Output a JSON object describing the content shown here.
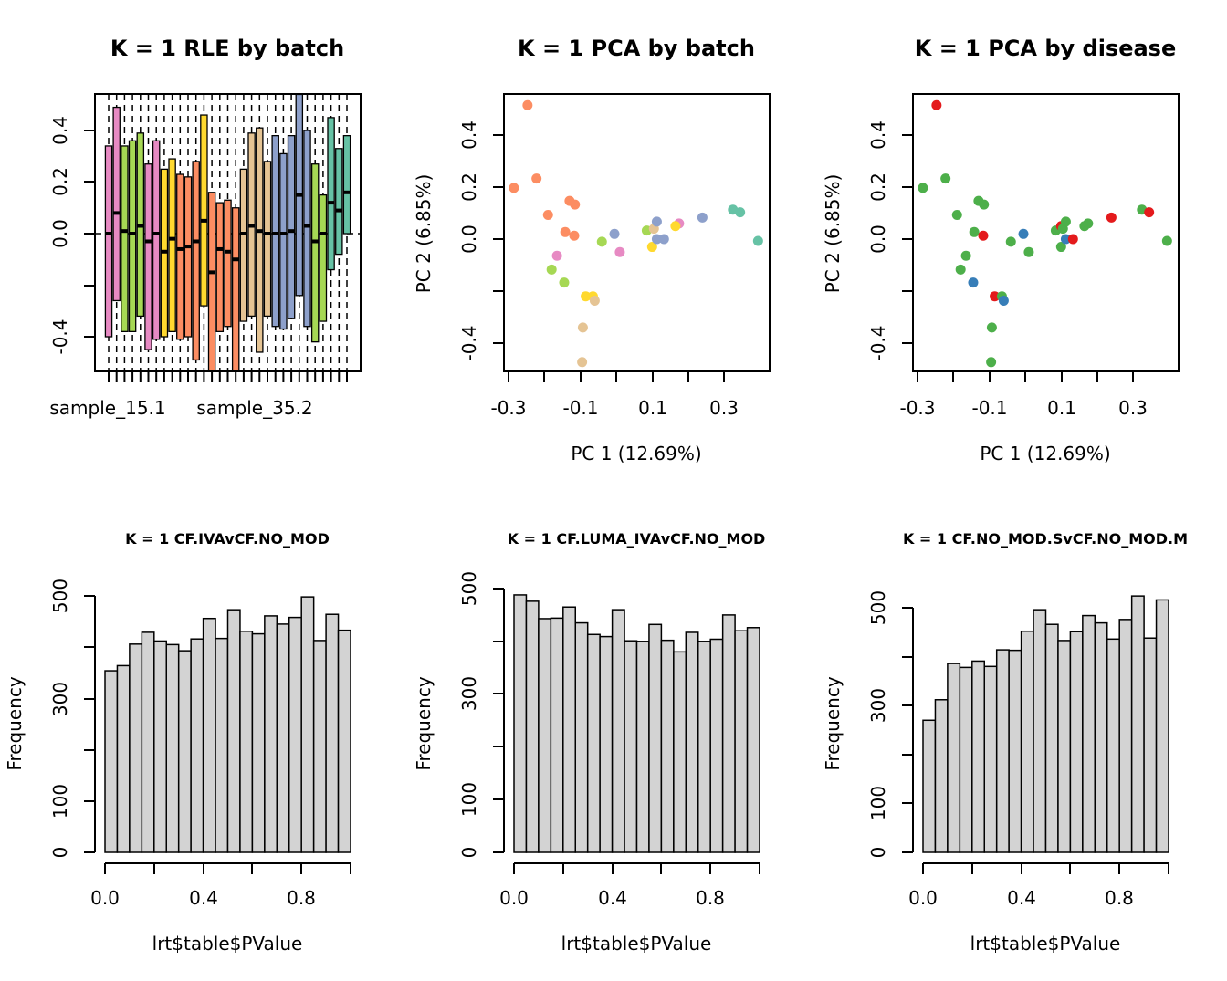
{
  "panels": {
    "rle": {
      "title": "K = 1 RLE by batch",
      "x_tick_labels": [
        "sample_15.1",
        "sample_35.2"
      ],
      "y_ticks": [
        "-0.4",
        "0.0",
        "0.2",
        "0.4"
      ]
    },
    "pca_batch": {
      "title": "K = 1 PCA by batch",
      "xlabel": "PC 1 (12.69%)",
      "ylabel": "PC 2 (6.85%)",
      "x_ticks": [
        "-0.3",
        "-0.1",
        "0.1",
        "0.3"
      ],
      "y_ticks": [
        "-0.4",
        "0.0",
        "0.2",
        "0.4"
      ]
    },
    "pca_disease": {
      "title": "K = 1 PCA by disease",
      "xlabel": "PC 1 (12.69%)",
      "ylabel": "PC 2 (6.85%)",
      "x_ticks": [
        "-0.3",
        "-0.1",
        "0.1",
        "0.3"
      ],
      "y_ticks": [
        "-0.4",
        "0.0",
        "0.2",
        "0.4"
      ]
    },
    "hist1": {
      "title": "K = 1 CF.IVAvCF.NO_MOD",
      "xlabel": "lrt$table$PValue",
      "ylabel": "Frequency",
      "x_ticks": [
        "0.0",
        "0.4",
        "0.8"
      ],
      "y_ticks": [
        "0",
        "100",
        "300",
        "500"
      ]
    },
    "hist2": {
      "title": "K = 1 CF.LUMA_IVAvCF.NO_MOD",
      "xlabel": "lrt$table$PValue",
      "ylabel": "Frequency",
      "x_ticks": [
        "0.0",
        "0.4",
        "0.8"
      ],
      "y_ticks": [
        "0",
        "100",
        "300",
        "500"
      ]
    },
    "hist3": {
      "title": "K = 1 CF.NO_MOD.SvCF.NO_MOD.M",
      "xlabel": "lrt$table$PValue",
      "ylabel": "Frequency",
      "x_ticks": [
        "0.0",
        "0.4",
        "0.8"
      ],
      "y_ticks": [
        "0",
        "100",
        "300",
        "500"
      ]
    }
  },
  "chart_data": [
    {
      "type": "box",
      "title": "K = 1 RLE by batch",
      "ylim": [
        -0.54,
        0.54
      ],
      "reference_line": 0,
      "boxes": [
        {
          "color": "#E78AC3",
          "q1": -0.4,
          "median": 0.0,
          "q3": 0.34
        },
        {
          "color": "#E78AC3",
          "q1": -0.26,
          "median": 0.08,
          "q3": 0.49
        },
        {
          "color": "#A6D854",
          "q1": -0.38,
          "median": 0.01,
          "q3": 0.34
        },
        {
          "color": "#A6D854",
          "q1": -0.38,
          "median": 0.0,
          "q3": 0.36
        },
        {
          "color": "#A6D854",
          "q1": -0.32,
          "median": 0.03,
          "q3": 0.39
        },
        {
          "color": "#E78AC3",
          "q1": -0.45,
          "median": -0.03,
          "q3": 0.27
        },
        {
          "color": "#E78AC3",
          "q1": -0.41,
          "median": 0.0,
          "q3": 0.36
        },
        {
          "color": "#FFD92F",
          "q1": -0.4,
          "median": -0.07,
          "q3": 0.25
        },
        {
          "color": "#FFD92F",
          "q1": -0.38,
          "median": -0.02,
          "q3": 0.29
        },
        {
          "color": "#FC8D62",
          "q1": -0.41,
          "median": -0.06,
          "q3": 0.23
        },
        {
          "color": "#FC8D62",
          "q1": -0.4,
          "median": -0.05,
          "q3": 0.22
        },
        {
          "color": "#FC8D62",
          "q1": -0.49,
          "median": -0.03,
          "q3": 0.28
        },
        {
          "color": "#FFD92F",
          "q1": -0.28,
          "median": 0.05,
          "q3": 0.46
        },
        {
          "color": "#FC8D62",
          "q1": -0.54,
          "median": -0.15,
          "q3": 0.16
        },
        {
          "color": "#FC8D62",
          "q1": -0.38,
          "median": -0.06,
          "q3": 0.12
        },
        {
          "color": "#FC8D62",
          "q1": -0.36,
          "median": -0.07,
          "q3": 0.13
        },
        {
          "color": "#FC8D62",
          "q1": -0.54,
          "median": -0.1,
          "q3": 0.1
        },
        {
          "color": "#E5C494",
          "q1": -0.34,
          "median": 0.0,
          "q3": 0.25
        },
        {
          "color": "#E5C494",
          "q1": -0.32,
          "median": 0.03,
          "q3": 0.39
        },
        {
          "color": "#E5C494",
          "q1": -0.46,
          "median": 0.01,
          "q3": 0.41
        },
        {
          "color": "#E5C494",
          "q1": -0.32,
          "median": 0.0,
          "q3": 0.28
        },
        {
          "color": "#8DA0CB",
          "q1": -0.36,
          "median": 0.0,
          "q3": 0.38
        },
        {
          "color": "#8DA0CB",
          "q1": -0.37,
          "median": 0.0,
          "q3": 0.31
        },
        {
          "color": "#8DA0CB",
          "q1": -0.33,
          "median": 0.01,
          "q3": 0.38
        },
        {
          "color": "#8DA0CB",
          "q1": -0.24,
          "median": 0.15,
          "q3": 0.54
        },
        {
          "color": "#8DA0CB",
          "q1": -0.36,
          "median": 0.03,
          "q3": 0.4
        },
        {
          "color": "#A6D854",
          "q1": -0.42,
          "median": -0.03,
          "q3": 0.27
        },
        {
          "color": "#A6D854",
          "q1": -0.34,
          "median": 0.0,
          "q3": 0.15
        },
        {
          "color": "#66C2A5",
          "q1": -0.14,
          "median": 0.12,
          "q3": 0.45
        },
        {
          "color": "#66C2A5",
          "q1": -0.08,
          "median": 0.09,
          "q3": 0.33
        },
        {
          "color": "#66C2A5",
          "q1": 0.0,
          "median": 0.16,
          "q3": 0.38
        }
      ]
    },
    {
      "type": "scatter",
      "title": "K = 1 PCA by batch",
      "xlabel": "PC 1 (12.69%)",
      "ylabel": "PC 2 (6.85%)",
      "xlim": [
        -0.32,
        0.4
      ],
      "ylim": [
        -0.51,
        0.56
      ],
      "points": [
        {
          "x": -0.247,
          "y": 0.515,
          "color": "#FC8D62"
        },
        {
          "x": -0.222,
          "y": 0.233,
          "color": "#FC8D62"
        },
        {
          "x": -0.285,
          "y": 0.197,
          "color": "#FC8D62"
        },
        {
          "x": -0.13,
          "y": 0.147,
          "color": "#FC8D62"
        },
        {
          "x": -0.115,
          "y": 0.133,
          "color": "#FC8D62"
        },
        {
          "x": -0.19,
          "y": 0.093,
          "color": "#FC8D62"
        },
        {
          "x": -0.142,
          "y": 0.027,
          "color": "#FC8D62"
        },
        {
          "x": -0.117,
          "y": 0.013,
          "color": "#FC8D62"
        },
        {
          "x": -0.165,
          "y": -0.064,
          "color": "#E78AC3"
        },
        {
          "x": 0.01,
          "y": -0.05,
          "color": "#E78AC3"
        },
        {
          "x": 0.175,
          "y": 0.06,
          "color": "#E78AC3"
        },
        {
          "x": -0.18,
          "y": -0.117,
          "color": "#A6D854"
        },
        {
          "x": -0.145,
          "y": -0.167,
          "color": "#A6D854"
        },
        {
          "x": -0.04,
          "y": -0.01,
          "color": "#A6D854"
        },
        {
          "x": 0.085,
          "y": 0.033,
          "color": "#A6D854"
        },
        {
          "x": -0.085,
          "y": -0.22,
          "color": "#FFD92F"
        },
        {
          "x": -0.065,
          "y": -0.22,
          "color": "#FFD92F"
        },
        {
          "x": 0.1,
          "y": -0.03,
          "color": "#FFD92F"
        },
        {
          "x": 0.165,
          "y": 0.05,
          "color": "#FFD92F"
        },
        {
          "x": -0.06,
          "y": -0.237,
          "color": "#E5C494"
        },
        {
          "x": -0.093,
          "y": -0.34,
          "color": "#E5C494"
        },
        {
          "x": -0.095,
          "y": -0.473,
          "color": "#E5C494"
        },
        {
          "x": 0.105,
          "y": 0.04,
          "color": "#E5C494"
        },
        {
          "x": -0.005,
          "y": 0.02,
          "color": "#8DA0CB"
        },
        {
          "x": 0.113,
          "y": 0.067,
          "color": "#8DA0CB"
        },
        {
          "x": 0.113,
          "y": 0.0,
          "color": "#8DA0CB"
        },
        {
          "x": 0.133,
          "y": 0.0,
          "color": "#8DA0CB"
        },
        {
          "x": 0.24,
          "y": 0.083,
          "color": "#8DA0CB"
        },
        {
          "x": 0.325,
          "y": 0.113,
          "color": "#66C2A5"
        },
        {
          "x": 0.345,
          "y": 0.103,
          "color": "#66C2A5"
        },
        {
          "x": 0.395,
          "y": -0.007,
          "color": "#66C2A5"
        }
      ]
    },
    {
      "type": "scatter",
      "title": "K = 1 PCA by disease",
      "xlabel": "PC 1 (12.69%)",
      "ylabel": "PC 2 (6.85%)",
      "xlim": [
        -0.32,
        0.4
      ],
      "ylim": [
        -0.51,
        0.56
      ],
      "points": [
        {
          "x": -0.247,
          "y": 0.515,
          "color": "#E41A1C"
        },
        {
          "x": -0.222,
          "y": 0.233,
          "color": "#4DAF4A"
        },
        {
          "x": -0.285,
          "y": 0.197,
          "color": "#4DAF4A"
        },
        {
          "x": -0.13,
          "y": 0.147,
          "color": "#4DAF4A"
        },
        {
          "x": -0.115,
          "y": 0.133,
          "color": "#4DAF4A"
        },
        {
          "x": -0.19,
          "y": 0.093,
          "color": "#4DAF4A"
        },
        {
          "x": -0.142,
          "y": 0.027,
          "color": "#4DAF4A"
        },
        {
          "x": -0.117,
          "y": 0.013,
          "color": "#E41A1C"
        },
        {
          "x": -0.165,
          "y": -0.064,
          "color": "#4DAF4A"
        },
        {
          "x": -0.18,
          "y": -0.117,
          "color": "#4DAF4A"
        },
        {
          "x": -0.145,
          "y": -0.167,
          "color": "#377EB8"
        },
        {
          "x": -0.04,
          "y": -0.01,
          "color": "#4DAF4A"
        },
        {
          "x": 0.01,
          "y": -0.05,
          "color": "#4DAF4A"
        },
        {
          "x": -0.005,
          "y": 0.02,
          "color": "#377EB8"
        },
        {
          "x": -0.085,
          "y": -0.22,
          "color": "#E41A1C"
        },
        {
          "x": -0.065,
          "y": -0.22,
          "color": "#4DAF4A"
        },
        {
          "x": -0.06,
          "y": -0.237,
          "color": "#377EB8"
        },
        {
          "x": -0.093,
          "y": -0.34,
          "color": "#4DAF4A"
        },
        {
          "x": -0.095,
          "y": -0.473,
          "color": "#4DAF4A"
        },
        {
          "x": 0.085,
          "y": 0.033,
          "color": "#4DAF4A"
        },
        {
          "x": 0.1,
          "y": -0.03,
          "color": "#4DAF4A"
        },
        {
          "x": 0.1,
          "y": 0.05,
          "color": "#E41A1C"
        },
        {
          "x": 0.105,
          "y": 0.04,
          "color": "#4DAF4A"
        },
        {
          "x": 0.113,
          "y": 0.067,
          "color": "#4DAF4A"
        },
        {
          "x": 0.113,
          "y": 0.0,
          "color": "#377EB8"
        },
        {
          "x": 0.133,
          "y": 0.0,
          "color": "#E41A1C"
        },
        {
          "x": 0.165,
          "y": 0.05,
          "color": "#4DAF4A"
        },
        {
          "x": 0.175,
          "y": 0.06,
          "color": "#4DAF4A"
        },
        {
          "x": 0.24,
          "y": 0.083,
          "color": "#E41A1C"
        },
        {
          "x": 0.325,
          "y": 0.113,
          "color": "#4DAF4A"
        },
        {
          "x": 0.345,
          "y": 0.103,
          "color": "#E41A1C"
        },
        {
          "x": 0.395,
          "y": -0.007,
          "color": "#4DAF4A"
        }
      ]
    },
    {
      "type": "bar",
      "title": "K = 1 CF.IVAvCF.NO_MOD",
      "xlabel": "lrt$table$PValue",
      "ylabel": "Frequency",
      "bin_width": 0.05,
      "xlim": [
        0,
        1
      ],
      "ylim": [
        0,
        500
      ],
      "values": [
        354,
        364,
        406,
        429,
        412,
        405,
        393,
        416,
        456,
        417,
        473,
        431,
        426,
        461,
        445,
        458,
        498,
        413,
        464,
        433
      ]
    },
    {
      "type": "bar",
      "title": "K = 1 CF.LUMA_IVAvCF.NO_MOD",
      "xlabel": "lrt$table$PValue",
      "ylabel": "Frequency",
      "bin_width": 0.05,
      "xlim": [
        0,
        1
      ],
      "ylim": [
        0,
        500
      ],
      "values": [
        488,
        476,
        443,
        444,
        465,
        435,
        413,
        409,
        460,
        401,
        400,
        432,
        402,
        380,
        417,
        400,
        404,
        450,
        420,
        426
      ]
    },
    {
      "type": "bar",
      "title": "K = 1 CF.NO_MOD.SvCF.NO_MOD.M",
      "xlabel": "lrt$table$PValue",
      "ylabel": "Frequency",
      "bin_width": 0.05,
      "xlim": [
        0,
        1
      ],
      "ylim": [
        0,
        500
      ],
      "values": [
        270,
        312,
        386,
        378,
        391,
        380,
        414,
        413,
        452,
        496,
        466,
        433,
        451,
        484,
        469,
        436,
        476,
        524,
        438,
        516
      ]
    }
  ]
}
